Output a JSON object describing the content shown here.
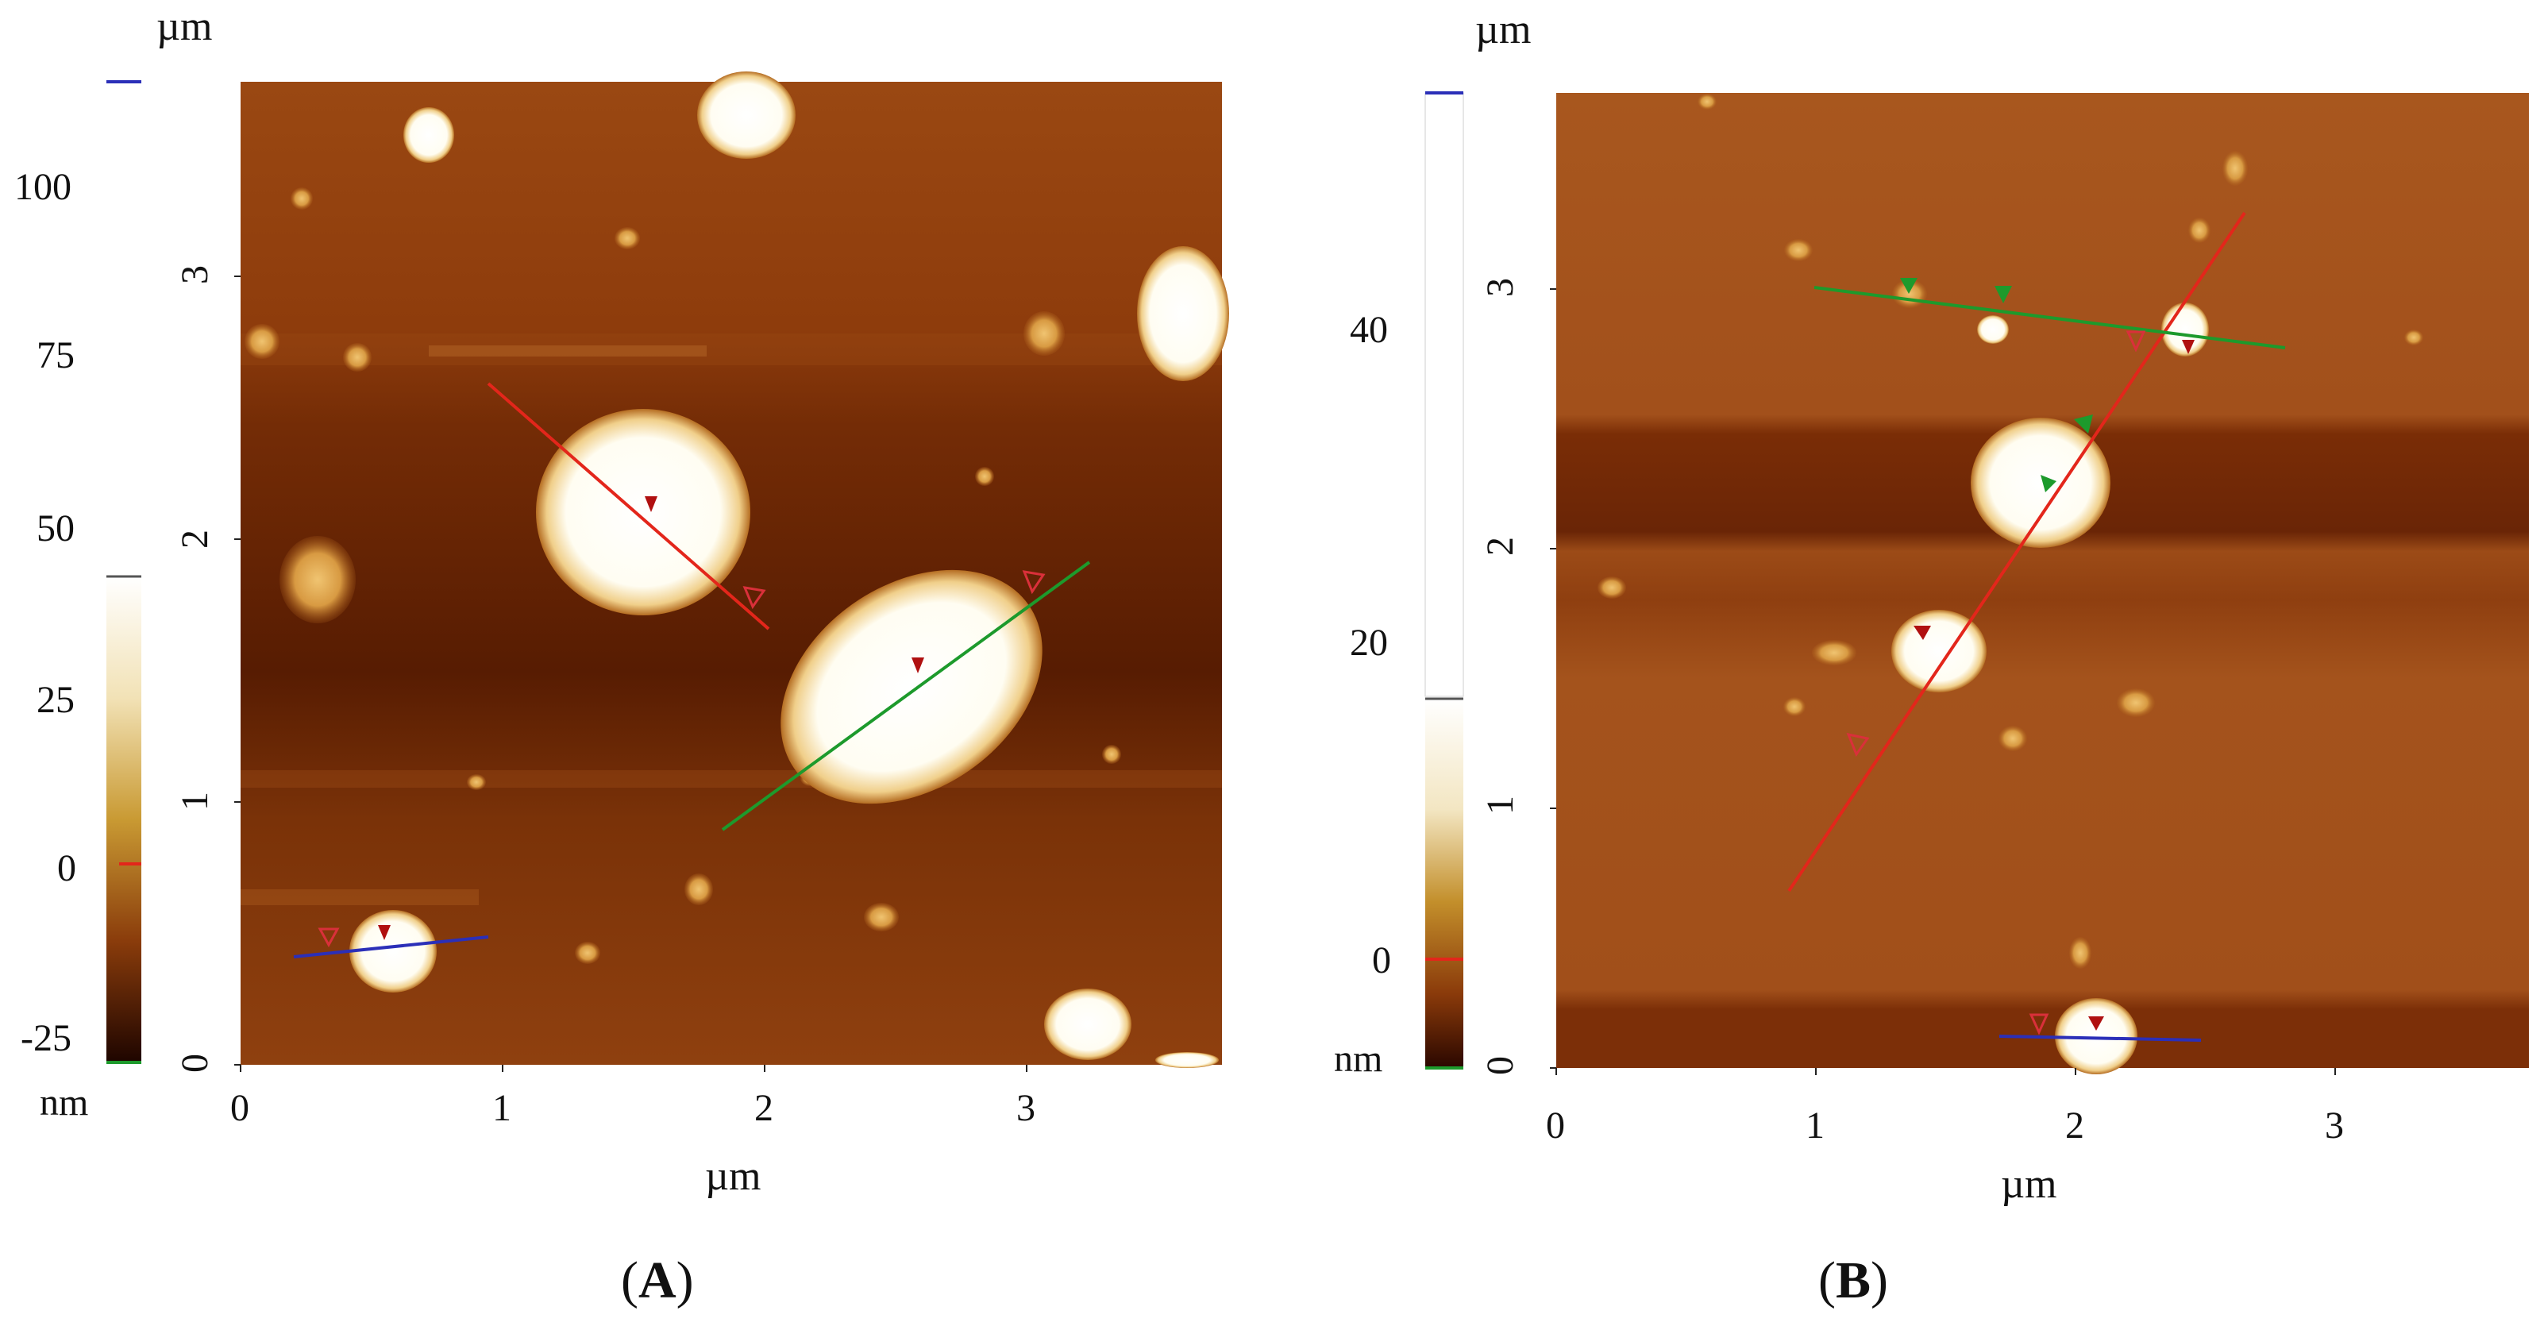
{
  "panels": [
    {
      "label": "A",
      "unit_top": "µm",
      "unit_bottom": "µm",
      "colorbar_unit": "nm",
      "colorbar_ticks": [
        "100",
        "75",
        "50",
        "25",
        "0",
        "-25"
      ],
      "x_ticks": [
        "0",
        "1",
        "2",
        "3"
      ],
      "y_ticks": [
        "0",
        "1",
        "2",
        "3"
      ],
      "colors": {
        "substrate": "#8b3a10",
        "dark_band": "#5a1f05",
        "particle": "#fffbe8",
        "line_red": "#e3261b",
        "line_green": "#1d9a2c",
        "line_blue": "#2b2fb8"
      }
    },
    {
      "label": "B",
      "unit_top": "µm",
      "unit_bottom": "µm",
      "colorbar_unit": "nm",
      "colorbar_ticks": [
        "40",
        "20",
        "0"
      ],
      "x_ticks": [
        "0",
        "1",
        "2",
        "3"
      ],
      "y_ticks": [
        "0",
        "1",
        "2",
        "3"
      ],
      "colors": {
        "substrate": "#a5531c",
        "dark_band": "#6b2606",
        "particle": "#ffffff",
        "line_red": "#e3261b",
        "line_green": "#1d9a2c",
        "line_blue": "#2b2fb8"
      }
    }
  ]
}
